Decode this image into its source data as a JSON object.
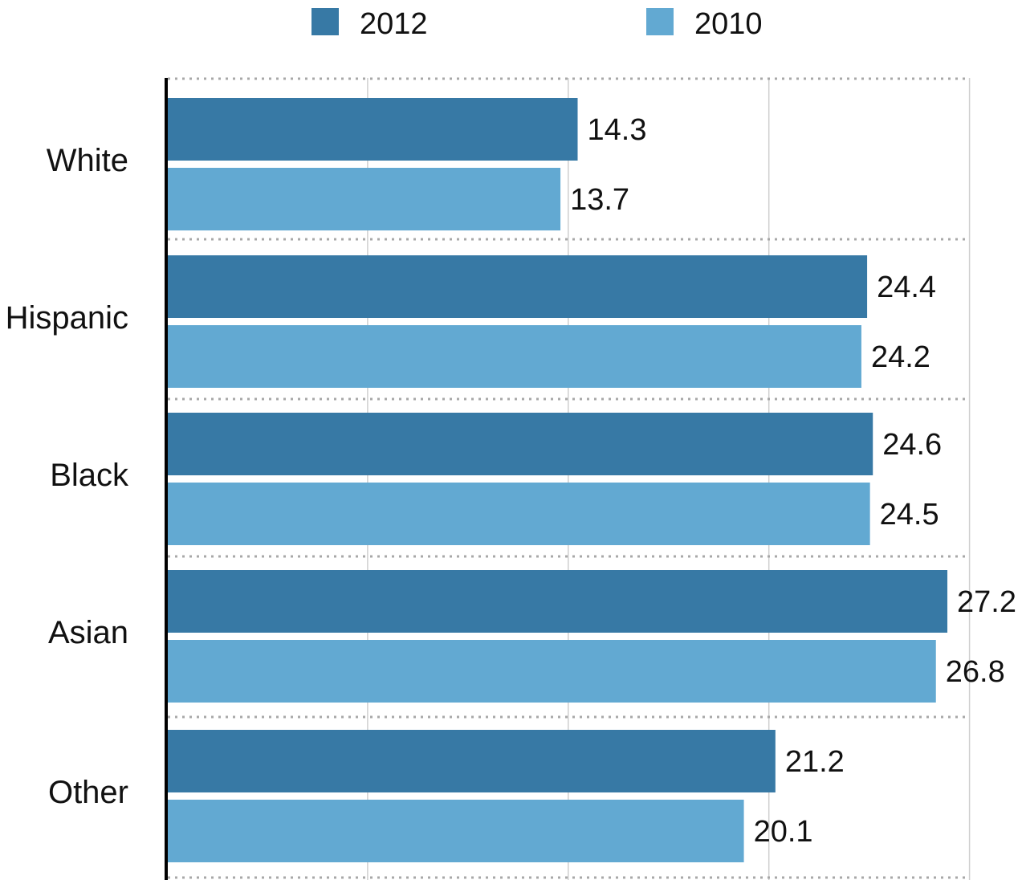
{
  "chart_data": {
    "type": "bar",
    "orientation": "horizontal",
    "categories": [
      "White",
      "Hispanic",
      "Black",
      "Asian",
      "Other"
    ],
    "series": [
      {
        "name": "2012",
        "color": "#3779a5",
        "values": [
          14.3,
          24.4,
          24.6,
          27.2,
          21.2
        ]
      },
      {
        "name": "2010",
        "color": "#62a9d2",
        "values": [
          13.7,
          24.2,
          24.5,
          26.8,
          20.1
        ]
      }
    ],
    "title": "",
    "xlabel": "",
    "ylabel": "",
    "xlim": [
      0,
      28
    ],
    "grid": true,
    "legend_position": "top"
  }
}
